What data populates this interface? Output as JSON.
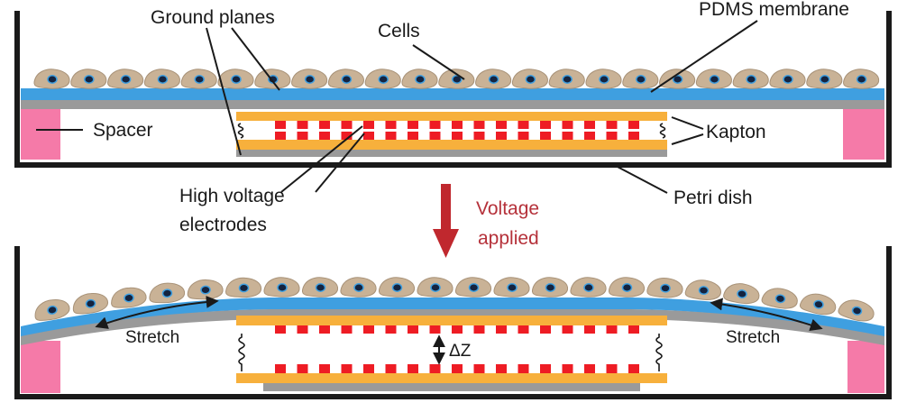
{
  "labels": {
    "ground_planes": "Ground planes",
    "cells": "Cells",
    "pdms_membrane": "PDMS membrane",
    "spacer": "Spacer",
    "kapton": "Kapton",
    "high_voltage_line1": "High voltage",
    "high_voltage_line2": "electrodes",
    "petri_dish": "Petri dish",
    "voltage_line1": "Voltage",
    "voltage_line2": "applied",
    "stretch": "Stretch",
    "delta_z": "ΔZ"
  },
  "colors": {
    "dish": "#1a1a1a",
    "membrane_gray": "#9a9a9a",
    "pdms_blue": "#3f9fe0",
    "kapton_orange": "#f7b03c",
    "electrode_red": "#ee1c24",
    "spacer_pink": "#f57aa8",
    "cell_body": "#c9b296",
    "cell_nucleus": "#1f3a7a",
    "arrow_red": "#c0282e"
  }
}
